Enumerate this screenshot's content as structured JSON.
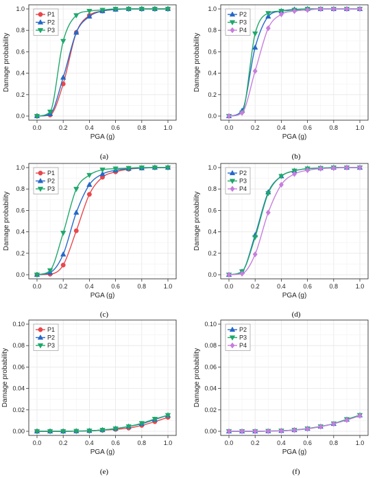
{
  "figure": {
    "colors": {
      "P1": "#e8474b",
      "P2": "#2468c8",
      "P3": "#1ea86a",
      "P4": "#c77ddd",
      "grid": "#e6e6e6",
      "axis": "#333333"
    },
    "markers": {
      "P1": "circle",
      "P2": "triangle-up",
      "P3": "triangle-down",
      "P4": "diamond"
    }
  },
  "chart_data": [
    {
      "type": "line",
      "panel_caption": "(a)",
      "xlabel": "PGA (g)",
      "ylabel": "Damage probability",
      "xlim": [
        0,
        1.0
      ],
      "ylim": [
        0,
        1.0
      ],
      "x_ticks": [
        "0.0",
        "0.2",
        "0.4",
        "0.6",
        "0.8",
        "1.0"
      ],
      "y_ticks": [
        "0.0",
        "0.2",
        "0.4",
        "0.6",
        "0.8",
        "1.0"
      ],
      "grid": true,
      "legend_position": "top-left",
      "x": [
        0.0,
        0.1,
        0.2,
        0.3,
        0.4,
        0.5,
        0.6,
        0.7,
        0.8,
        0.9,
        1.0
      ],
      "series": [
        {
          "name": "P1",
          "values": [
            0.0,
            0.01,
            0.3,
            0.78,
            0.94,
            0.98,
            0.995,
            1.0,
            1.0,
            1.0,
            1.0
          ]
        },
        {
          "name": "P2",
          "values": [
            0.0,
            0.02,
            0.36,
            0.78,
            0.93,
            0.98,
            0.995,
            1.0,
            1.0,
            1.0,
            1.0
          ]
        },
        {
          "name": "P3",
          "values": [
            0.0,
            0.04,
            0.7,
            0.94,
            0.98,
            0.99,
            1.0,
            1.0,
            1.0,
            1.0,
            1.0
          ]
        }
      ]
    },
    {
      "type": "line",
      "panel_caption": "(b)",
      "xlabel": "PGA (g)",
      "ylabel": "Damage probability",
      "xlim": [
        0,
        1.0
      ],
      "ylim": [
        0,
        1.0
      ],
      "x_ticks": [
        "0.0",
        "0.2",
        "0.4",
        "0.6",
        "0.8",
        "1.0"
      ],
      "y_ticks": [
        "0.0",
        "0.2",
        "0.4",
        "0.6",
        "0.8",
        "1.0"
      ],
      "grid": true,
      "legend_position": "top-left",
      "x": [
        0.0,
        0.1,
        0.2,
        0.3,
        0.4,
        0.5,
        0.6,
        0.7,
        0.8,
        0.9,
        1.0
      ],
      "series": [
        {
          "name": "P2",
          "values": [
            0.0,
            0.05,
            0.64,
            0.93,
            0.98,
            0.995,
            1.0,
            1.0,
            1.0,
            1.0,
            1.0
          ]
        },
        {
          "name": "P3",
          "values": [
            0.0,
            0.03,
            0.77,
            0.96,
            0.98,
            0.99,
            1.0,
            1.0,
            1.0,
            1.0,
            1.0
          ]
        },
        {
          "name": "P4",
          "values": [
            0.0,
            0.03,
            0.42,
            0.82,
            0.95,
            0.98,
            0.99,
            1.0,
            1.0,
            1.0,
            1.0
          ]
        }
      ]
    },
    {
      "type": "line",
      "panel_caption": "(c)",
      "xlabel": "PGA (g)",
      "ylabel": "Damage probability",
      "xlim": [
        0,
        1.0
      ],
      "ylim": [
        0,
        1.0
      ],
      "x_ticks": [
        "0.0",
        "0.2",
        "0.4",
        "0.6",
        "0.8",
        "1.0"
      ],
      "y_ticks": [
        "0.0",
        "0.2",
        "0.4",
        "0.6",
        "0.8",
        "1.0"
      ],
      "grid": true,
      "legend_position": "top-left",
      "x": [
        0.0,
        0.1,
        0.2,
        0.3,
        0.4,
        0.5,
        0.6,
        0.7,
        0.8,
        0.9,
        1.0
      ],
      "series": [
        {
          "name": "P1",
          "values": [
            0.0,
            0.005,
            0.09,
            0.41,
            0.75,
            0.91,
            0.96,
            0.985,
            0.995,
            1.0,
            1.0
          ]
        },
        {
          "name": "P2",
          "values": [
            0.0,
            0.02,
            0.19,
            0.58,
            0.84,
            0.94,
            0.975,
            0.99,
            0.995,
            1.0,
            1.0
          ]
        },
        {
          "name": "P3",
          "values": [
            0.0,
            0.04,
            0.39,
            0.8,
            0.93,
            0.98,
            0.99,
            0.995,
            1.0,
            1.0,
            1.0
          ]
        }
      ]
    },
    {
      "type": "line",
      "panel_caption": "(d)",
      "xlabel": "PGA (g)",
      "ylabel": "Damage probability",
      "xlim": [
        0,
        1.0
      ],
      "ylim": [
        0,
        1.0
      ],
      "x_ticks": [
        "0.0",
        "0.2",
        "0.4",
        "0.6",
        "0.8",
        "1.0"
      ],
      "y_ticks": [
        "0.0",
        "0.2",
        "0.4",
        "0.6",
        "0.8",
        "1.0"
      ],
      "grid": true,
      "legend_position": "top-left",
      "x": [
        0.0,
        0.1,
        0.2,
        0.3,
        0.4,
        0.5,
        0.6,
        0.7,
        0.8,
        0.9,
        1.0
      ],
      "series": [
        {
          "name": "P2",
          "values": [
            0.0,
            0.03,
            0.37,
            0.77,
            0.92,
            0.97,
            0.99,
            0.995,
            1.0,
            1.0,
            1.0
          ]
        },
        {
          "name": "P3",
          "values": [
            0.0,
            0.03,
            0.35,
            0.76,
            0.92,
            0.97,
            0.99,
            0.995,
            1.0,
            1.0,
            1.0
          ]
        },
        {
          "name": "P4",
          "values": [
            0.0,
            0.01,
            0.19,
            0.58,
            0.84,
            0.94,
            0.975,
            0.99,
            0.995,
            1.0,
            1.0
          ]
        }
      ]
    },
    {
      "type": "line",
      "panel_caption": "(e)",
      "xlabel": "PGA (g)",
      "ylabel": "Damage probability",
      "xlim": [
        0,
        1.0
      ],
      "ylim": [
        0,
        0.1
      ],
      "x_ticks": [
        "0.0",
        "0.2",
        "0.4",
        "0.6",
        "0.8",
        "1.0"
      ],
      "y_ticks": [
        "0.00",
        "0.02",
        "0.04",
        "0.06",
        "0.08",
        "0.10"
      ],
      "grid": true,
      "legend_position": "top-left",
      "x": [
        0.0,
        0.1,
        0.2,
        0.3,
        0.4,
        0.5,
        0.6,
        0.7,
        0.8,
        0.9,
        1.0
      ],
      "series": [
        {
          "name": "P1",
          "values": [
            0.0,
            0.0,
            0.0,
            0.0001,
            0.0004,
            0.001,
            0.0018,
            0.003,
            0.0055,
            0.009,
            0.013
          ]
        },
        {
          "name": "P2",
          "values": [
            0.0,
            0.0,
            0.0,
            0.0002,
            0.0005,
            0.0012,
            0.0025,
            0.0045,
            0.007,
            0.011,
            0.015
          ]
        },
        {
          "name": "P3",
          "values": [
            0.0,
            0.0,
            0.0,
            0.0002,
            0.0005,
            0.0012,
            0.0025,
            0.0045,
            0.0075,
            0.0115,
            0.015
          ]
        }
      ]
    },
    {
      "type": "line",
      "panel_caption": "(f)",
      "xlabel": "PGA (g)",
      "ylabel": "Damage probability",
      "xlim": [
        0,
        1.0
      ],
      "ylim": [
        0,
        0.1
      ],
      "x_ticks": [
        "0.0",
        "0.2",
        "0.4",
        "0.6",
        "0.8",
        "1.0"
      ],
      "y_ticks": [
        "0.00",
        "0.02",
        "0.04",
        "0.06",
        "0.08",
        "0.10"
      ],
      "grid": true,
      "legend_position": "top-left",
      "x": [
        0.0,
        0.1,
        0.2,
        0.3,
        0.4,
        0.5,
        0.6,
        0.7,
        0.8,
        0.9,
        1.0
      ],
      "series": [
        {
          "name": "P2",
          "values": [
            0.0,
            0.0,
            0.0,
            0.0002,
            0.0005,
            0.0012,
            0.0025,
            0.0045,
            0.007,
            0.011,
            0.015
          ]
        },
        {
          "name": "P3",
          "values": [
            0.0,
            0.0,
            0.0,
            0.0002,
            0.0005,
            0.0012,
            0.0025,
            0.0045,
            0.0072,
            0.0112,
            0.015
          ]
        },
        {
          "name": "P4",
          "values": [
            0.0,
            0.0,
            0.0,
            0.0002,
            0.0005,
            0.0011,
            0.0023,
            0.0043,
            0.007,
            0.0105,
            0.0145
          ]
        }
      ]
    }
  ]
}
